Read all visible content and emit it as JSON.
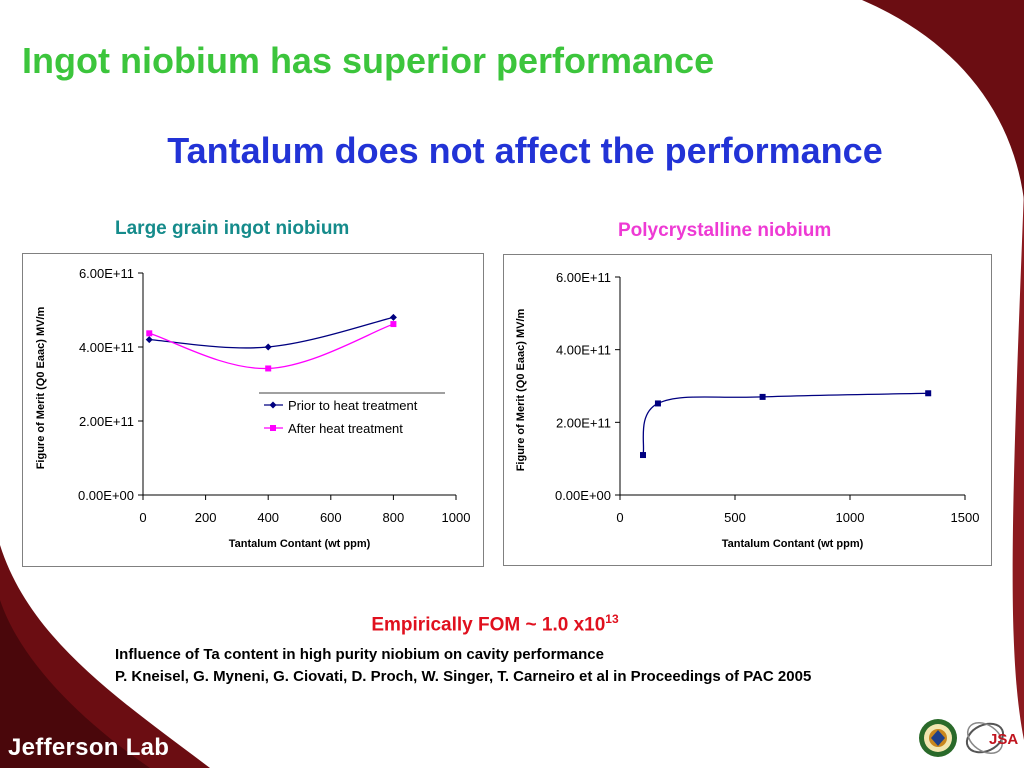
{
  "slide": {
    "title": "Ingot niobium has superior performance",
    "subtitle": "Tantalum does not affect the performance",
    "fom_text": "Empirically FOM ~ 1.0 x10",
    "fom_exponent": "13",
    "reference_title": "Influence of Ta content in high purity niobium on cavity performance",
    "reference_authors": "P. Kneisel, G. Myneni, G. Ciovati, D. Proch, W. Singer, T. Carneiro et al in Proceedings of PAC 2005",
    "logo_text": "Jefferson Lab",
    "jsa_logo_text": "JSA"
  },
  "colors": {
    "title_green": "#3cc53c",
    "subtitle_blue": "#2233d6",
    "heading_teal": "#158b8b",
    "heading_pink": "#ee3ad4",
    "fom_red": "#e0101e",
    "series_navy": "#000080",
    "series_magenta": "#ff00ff",
    "swoosh_maroon": "#6b0d12"
  },
  "chart_data": [
    {
      "heading": "Large grain ingot niobium",
      "type": "line",
      "smooth": true,
      "xlabel": "Tantalum Contant (wt ppm)",
      "ylabel": "Figure of Merit (Q0 Eaac) MV/m",
      "xlim": [
        0,
        1000
      ],
      "ylim": [
        0,
        600000000000
      ],
      "xticks": [
        0,
        200,
        400,
        600,
        800,
        1000
      ],
      "yticks": [
        0,
        200000000000,
        400000000000,
        600000000000
      ],
      "xtick_labels": [
        "0",
        "200",
        "400",
        "600",
        "800",
        "1000"
      ],
      "ytick_labels": [
        "0.00E+00",
        "2.00E+11",
        "4.00E+11",
        "6.00E+11"
      ],
      "legend_position": "center-right",
      "series": [
        {
          "name": "Prior to heat treatment",
          "color": "#000080",
          "marker": "diamond",
          "points": [
            [
              20,
              420000000000
            ],
            [
              400,
              400000000000
            ],
            [
              800,
              480000000000
            ]
          ]
        },
        {
          "name": "After heat treatment",
          "color": "#ff00ff",
          "marker": "square",
          "points": [
            [
              20,
              437000000000
            ],
            [
              400,
              342000000000
            ],
            [
              800,
              462000000000
            ]
          ]
        }
      ]
    },
    {
      "heading": "Polycrystalline niobium",
      "type": "line",
      "smooth": true,
      "xlabel": "Tantalum Contant (wt ppm)",
      "ylabel": "Figure of Merit (Q0 Eaac) MV/m",
      "xlim": [
        0,
        1500
      ],
      "ylim": [
        0,
        600000000000
      ],
      "xticks": [
        0,
        500,
        1000,
        1500
      ],
      "yticks": [
        0,
        200000000000,
        400000000000,
        600000000000
      ],
      "xtick_labels": [
        "0",
        "500",
        "1000",
        "1500"
      ],
      "ytick_labels": [
        "0.00E+00",
        "2.00E+11",
        "4.00E+11",
        "6.00E+11"
      ],
      "series": [
        {
          "color": "#000080",
          "marker": "square",
          "points": [
            [
              100,
              110000000000
            ],
            [
              165,
              252000000000
            ],
            [
              620,
              270000000000
            ],
            [
              1340,
              280000000000
            ]
          ]
        }
      ]
    }
  ]
}
